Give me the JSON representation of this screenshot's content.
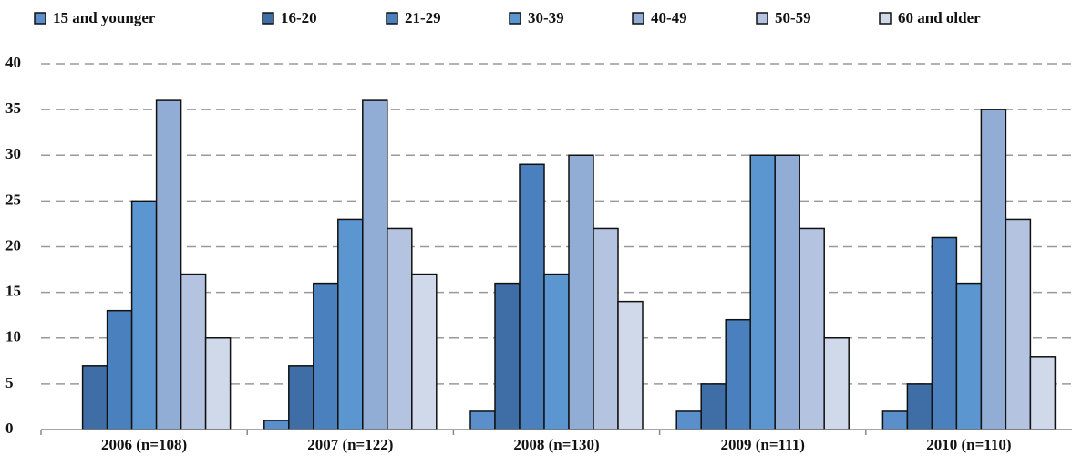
{
  "chart_data": {
    "type": "bar",
    "categories": [
      "2006 (n=108)",
      "2007 (n=122)",
      "2008 (n=130)",
      "2009 (n=111)",
      "2010 (n=110)"
    ],
    "series": [
      {
        "name": "15 and younger",
        "color": "#5a8fcc",
        "values": [
          0,
          1,
          2,
          2,
          2
        ]
      },
      {
        "name": "16-20",
        "color": "#3f6ea6",
        "values": [
          7,
          7,
          16,
          5,
          5
        ]
      },
      {
        "name": "21-29",
        "color": "#4a80bd",
        "values": [
          13,
          16,
          29,
          12,
          21
        ]
      },
      {
        "name": "30-39",
        "color": "#5b96d0",
        "values": [
          25,
          23,
          17,
          30,
          16
        ]
      },
      {
        "name": "40-49",
        "color": "#92add5",
        "values": [
          36,
          36,
          30,
          30,
          35
        ]
      },
      {
        "name": "50-59",
        "color": "#b3c3e0",
        "values": [
          17,
          22,
          22,
          22,
          23
        ]
      },
      {
        "name": "60 and older",
        "color": "#d0d9ea",
        "values": [
          10,
          17,
          14,
          10,
          8
        ]
      }
    ],
    "ylim": [
      0,
      40
    ],
    "yticks": [
      0,
      5,
      10,
      15,
      20,
      25,
      30,
      35,
      40
    ],
    "grid": true,
    "legend": "top"
  }
}
